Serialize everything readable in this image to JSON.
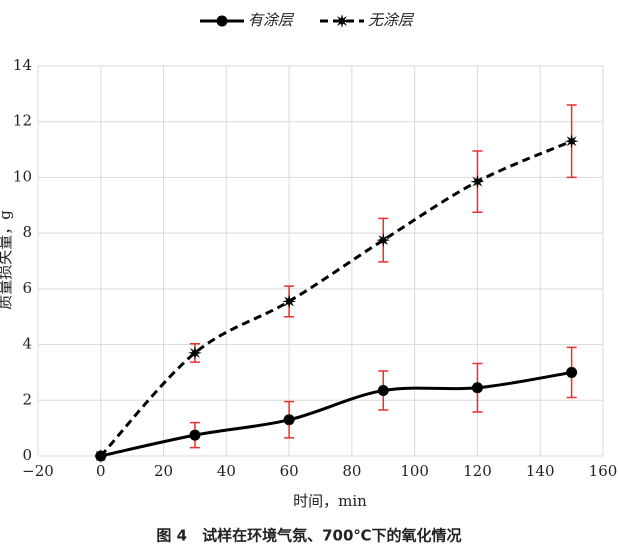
{
  "chart_data": {
    "type": "line",
    "xlabel": "时间，min",
    "ylabel": "质量损失量，g",
    "caption": "图 4　试样在环境气氛、700℃下的氧化情况",
    "x": [
      0,
      30,
      60,
      90,
      120,
      150
    ],
    "series": [
      {
        "name": "有涂层",
        "color": "#000000",
        "dash": false,
        "marker": "circle",
        "values": [
          0,
          0.75,
          1.3,
          2.35,
          2.45,
          3.0
        ],
        "errors": [
          0,
          0.45,
          0.65,
          0.7,
          0.87,
          0.9
        ]
      },
      {
        "name": "无涂层",
        "color": "#000000",
        "dash": true,
        "marker": "star",
        "values": [
          0,
          3.7,
          5.55,
          7.75,
          9.85,
          11.3
        ],
        "errors": [
          0,
          0.33,
          0.55,
          0.78,
          1.1,
          1.3
        ]
      }
    ],
    "error_color": "#e8302c",
    "xlim": [
      -20,
      160
    ],
    "xticks": [
      {
        "value": -20,
        "label": "−20"
      },
      0,
      20,
      40,
      60,
      80,
      100,
      120,
      140,
      160
    ],
    "ylim": [
      0,
      14
    ],
    "yticks": [
      0,
      2,
      4,
      6,
      8,
      10,
      12,
      14
    ],
    "grid": true,
    "legend": "top"
  }
}
